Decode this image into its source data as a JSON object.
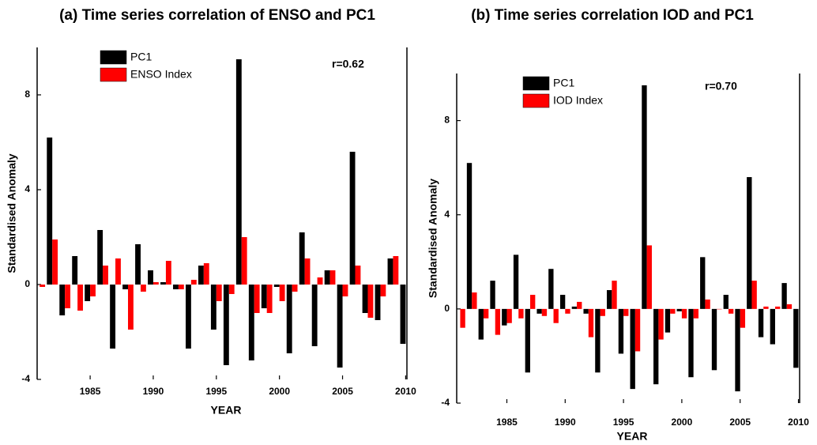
{
  "chart_data": [
    {
      "type": "bar",
      "title": "(a) Time series correlation of ENSO and PC1",
      "x_label": "YEAR",
      "y_label": "Standardised Anomaly",
      "annotation": "r=0.62",
      "x": [
        1981,
        1982,
        1983,
        1984,
        1985,
        1986,
        1987,
        1988,
        1989,
        1990,
        1991,
        1992,
        1993,
        1994,
        1995,
        1996,
        1997,
        1998,
        1999,
        2000,
        2001,
        2002,
        2003,
        2004,
        2005,
        2006,
        2007,
        2008,
        2009,
        2010
      ],
      "series": [
        {
          "name": "PC1",
          "color": "#000000",
          "values": [
            null,
            6.2,
            -1.3,
            1.2,
            -0.7,
            2.3,
            -2.7,
            -0.2,
            1.7,
            0.6,
            0.1,
            -0.2,
            -2.7,
            0.8,
            -1.9,
            -3.4,
            9.5,
            -3.2,
            -1.0,
            -0.1,
            -2.9,
            2.2,
            -2.6,
            0.6,
            -3.5,
            5.6,
            -1.2,
            -1.5,
            1.1,
            -2.5
          ]
        },
        {
          "name": "ENSO Index",
          "color": "#ff0000",
          "values": [
            -0.1,
            1.9,
            -1.0,
            -1.1,
            -0.5,
            0.8,
            1.1,
            -1.9,
            -0.3,
            0.1,
            1.0,
            -0.2,
            0.2,
            0.9,
            -0.7,
            -0.4,
            2.0,
            -1.2,
            -1.2,
            -0.7,
            -0.3,
            1.1,
            0.3,
            0.6,
            -0.5,
            0.8,
            -1.4,
            -0.5,
            1.2,
            null
          ]
        }
      ],
      "xlim": [
        1980.8,
        2010.1
      ],
      "xticks": [
        1985,
        1990,
        1995,
        2000,
        2005,
        2010
      ],
      "ylim": [
        -4,
        10
      ],
      "yticks": [
        -4,
        0,
        4,
        8
      ]
    },
    {
      "type": "bar",
      "title": "(b) Time series correlation IOD and PC1",
      "x_label": "YEAR",
      "y_label": "Standardised Anomaly",
      "annotation": "r=0.70",
      "x": [
        1981,
        1982,
        1983,
        1984,
        1985,
        1986,
        1987,
        1988,
        1989,
        1990,
        1991,
        1992,
        1993,
        1994,
        1995,
        1996,
        1997,
        1998,
        1999,
        2000,
        2001,
        2002,
        2003,
        2004,
        2005,
        2006,
        2007,
        2008,
        2009,
        2010
      ],
      "series": [
        {
          "name": "PC1",
          "color": "#000000",
          "values": [
            null,
            6.2,
            -1.3,
            1.2,
            -0.7,
            2.3,
            -2.7,
            -0.2,
            1.7,
            0.6,
            0.1,
            -0.2,
            -2.7,
            0.8,
            -1.9,
            -3.4,
            9.5,
            -3.2,
            -1.0,
            -0.1,
            -2.9,
            2.2,
            -2.6,
            0.6,
            -3.5,
            5.6,
            -1.2,
            -1.5,
            1.1,
            -2.5
          ]
        },
        {
          "name": "IOD Index",
          "color": "#ff0000",
          "values": [
            -0.8,
            0.7,
            -0.4,
            -1.1,
            -0.6,
            -0.4,
            0.6,
            -0.3,
            -0.6,
            -0.2,
            0.3,
            -1.2,
            -0.3,
            1.2,
            -0.3,
            -1.8,
            2.7,
            -1.3,
            -0.2,
            -0.4,
            -0.4,
            0.4,
            0.0,
            -0.2,
            -0.8,
            1.2,
            0.1,
            0.1,
            0.2,
            null
          ]
        }
      ],
      "xlim": [
        1980.7,
        2010.1
      ],
      "xticks": [
        1985,
        1990,
        1995,
        2000,
        2005,
        2010
      ],
      "ylim": [
        -4,
        10
      ],
      "yticks": [
        -4,
        0,
        4,
        8
      ]
    }
  ]
}
